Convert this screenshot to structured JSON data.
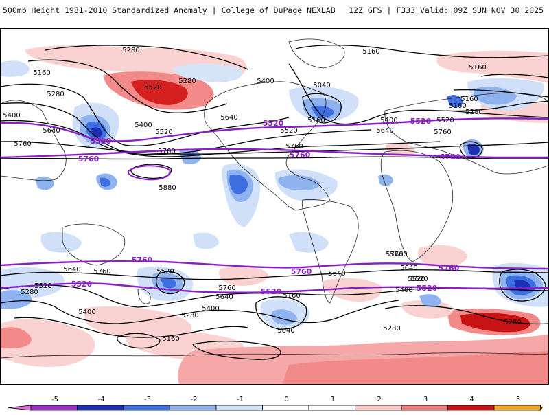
{
  "header": {
    "left_title": "500mb Height 1981-2010 Standardized Anomaly | College of DuPage NEXLAB",
    "right_title": "12Z GFS | F333 Valid: 09Z SUN NOV 30 2025"
  },
  "contours": {
    "black": [
      {
        "label": "5280"
      },
      {
        "label": "5160"
      },
      {
        "label": "5160"
      },
      {
        "label": "5280"
      },
      {
        "label": "5520"
      },
      {
        "label": "5400"
      },
      {
        "label": "5160"
      },
      {
        "label": "5280"
      },
      {
        "label": "5040"
      },
      {
        "label": "5400"
      },
      {
        "label": "5640"
      },
      {
        "label": "5400"
      },
      {
        "label": "5520"
      },
      {
        "label": "5520"
      },
      {
        "label": "5760"
      },
      {
        "label": "5760"
      },
      {
        "label": "5640"
      },
      {
        "label": "5160"
      },
      {
        "label": "5400"
      },
      {
        "label": "5520"
      },
      {
        "label": "5640"
      },
      {
        "label": "5760"
      },
      {
        "label": "5160"
      },
      {
        "label": "5280"
      },
      {
        "label": "5160"
      },
      {
        "label": "5760"
      },
      {
        "label": "5880"
      },
      {
        "label": "5760"
      },
      {
        "label": "5640"
      },
      {
        "label": "5520"
      },
      {
        "label": "5760"
      },
      {
        "label": "5520"
      },
      {
        "label": "5280"
      },
      {
        "label": "5400"
      },
      {
        "label": "5520"
      },
      {
        "label": "5640"
      },
      {
        "label": "5760"
      },
      {
        "label": "5400"
      },
      {
        "label": "5280"
      },
      {
        "label": "5160"
      },
      {
        "label": "5040"
      },
      {
        "label": "5160"
      },
      {
        "label": "5760"
      },
      {
        "label": "5640"
      },
      {
        "label": "5520"
      },
      {
        "label": "5400"
      },
      {
        "label": "5280"
      },
      {
        "label": "5280"
      },
      {
        "label": "5640"
      }
    ],
    "purple": [
      {
        "label": "5520"
      },
      {
        "label": "5520"
      },
      {
        "label": "5520"
      },
      {
        "label": "5760"
      },
      {
        "label": "5760"
      },
      {
        "label": "5760"
      },
      {
        "label": "5760"
      },
      {
        "label": "5760"
      },
      {
        "label": "5760"
      },
      {
        "label": "5520"
      },
      {
        "label": "5520"
      },
      {
        "label": "5520"
      }
    ]
  },
  "colorbar": {
    "labels": [
      "-5",
      "-4",
      "-3",
      "-2",
      "-1",
      "0",
      "1",
      "2",
      "3",
      "4",
      "5"
    ],
    "colors": [
      "#9b30c8",
      "#1c2fb5",
      "#3d6fe0",
      "#8fb3ef",
      "#cfe0f8",
      "#ffffff",
      "#ffffff",
      "#fbc8c8",
      "#f07a7a",
      "#c81414",
      "#f5a623"
    ],
    "min_color": "#e070d8",
    "max_color": "#f0c000"
  }
}
